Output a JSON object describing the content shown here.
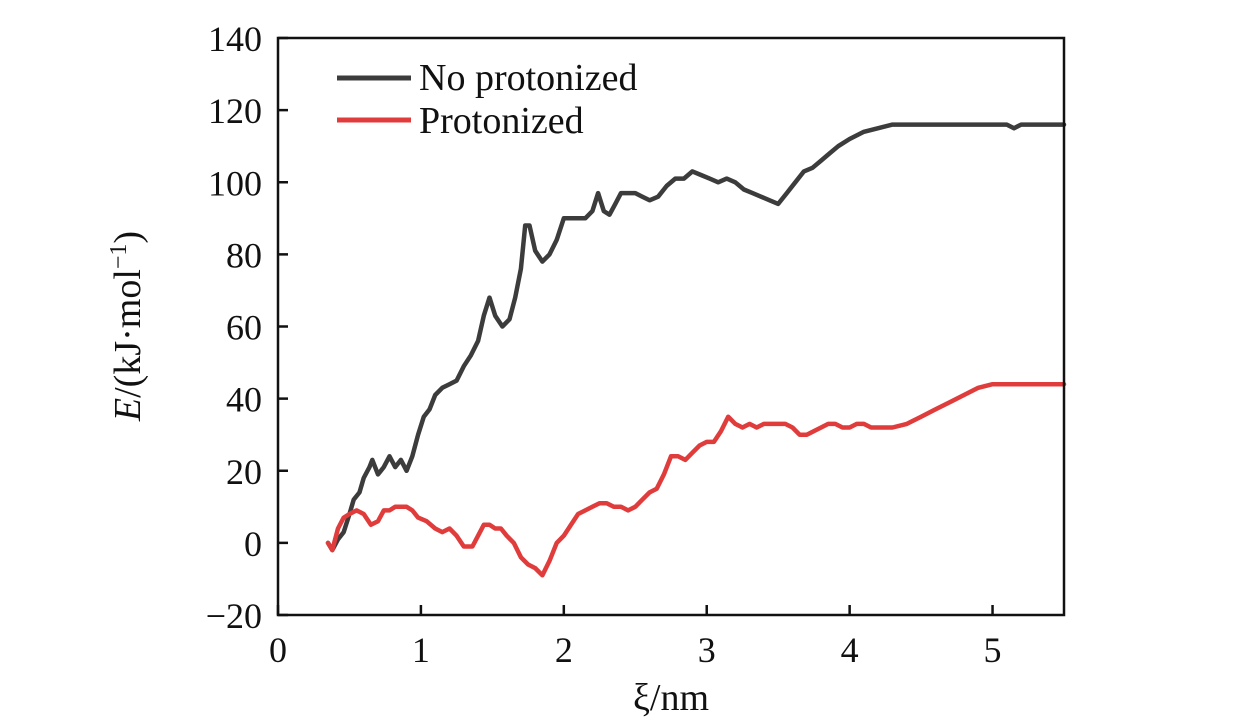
{
  "chart_data": {
    "type": "line",
    "title": "",
    "xlabel": "ξ/nm",
    "ylabel": {
      "italic": "E",
      "rest": "/(kJ·mol",
      "sup": "−1",
      "close": ")"
    },
    "xlim": [
      0,
      5.5
    ],
    "ylim": [
      -20,
      140
    ],
    "xticks": [
      0,
      1,
      2,
      3,
      4,
      5
    ],
    "yticks": [
      -20,
      0,
      20,
      40,
      60,
      80,
      100,
      120,
      140
    ],
    "ytick_labels": [
      "−20",
      "0",
      "20",
      "40",
      "60",
      "80",
      "100",
      "120",
      "140"
    ],
    "grid": false,
    "legend_position": "top-left",
    "series": [
      {
        "name": "No protonized",
        "color": "#3c3c3c",
        "points": [
          [
            0.35,
            0
          ],
          [
            0.38,
            -2
          ],
          [
            0.42,
            1
          ],
          [
            0.46,
            3
          ],
          [
            0.5,
            8
          ],
          [
            0.53,
            12
          ],
          [
            0.57,
            14
          ],
          [
            0.6,
            18
          ],
          [
            0.64,
            21
          ],
          [
            0.66,
            23
          ],
          [
            0.7,
            19
          ],
          [
            0.74,
            21
          ],
          [
            0.78,
            24
          ],
          [
            0.82,
            21
          ],
          [
            0.86,
            23
          ],
          [
            0.9,
            20
          ],
          [
            0.94,
            24
          ],
          [
            0.98,
            30
          ],
          [
            1.02,
            35
          ],
          [
            1.06,
            37
          ],
          [
            1.1,
            41
          ],
          [
            1.15,
            43
          ],
          [
            1.2,
            44
          ],
          [
            1.25,
            45
          ],
          [
            1.3,
            49
          ],
          [
            1.35,
            52
          ],
          [
            1.4,
            56
          ],
          [
            1.44,
            63
          ],
          [
            1.48,
            68
          ],
          [
            1.52,
            63
          ],
          [
            1.57,
            60
          ],
          [
            1.62,
            62
          ],
          [
            1.66,
            68
          ],
          [
            1.7,
            76
          ],
          [
            1.73,
            88
          ],
          [
            1.76,
            88
          ],
          [
            1.8,
            81
          ],
          [
            1.85,
            78
          ],
          [
            1.9,
            80
          ],
          [
            1.95,
            84
          ],
          [
            2.0,
            90
          ],
          [
            2.05,
            90
          ],
          [
            2.1,
            90
          ],
          [
            2.15,
            90
          ],
          [
            2.2,
            92
          ],
          [
            2.24,
            97
          ],
          [
            2.28,
            92
          ],
          [
            2.32,
            91
          ],
          [
            2.36,
            94
          ],
          [
            2.4,
            97
          ],
          [
            2.45,
            97
          ],
          [
            2.5,
            97
          ],
          [
            2.55,
            96
          ],
          [
            2.6,
            95
          ],
          [
            2.66,
            96
          ],
          [
            2.72,
            99
          ],
          [
            2.78,
            101
          ],
          [
            2.84,
            101
          ],
          [
            2.9,
            103
          ],
          [
            2.96,
            102
          ],
          [
            3.02,
            101
          ],
          [
            3.08,
            100
          ],
          [
            3.14,
            101
          ],
          [
            3.2,
            100
          ],
          [
            3.26,
            98
          ],
          [
            3.32,
            97
          ],
          [
            3.38,
            96
          ],
          [
            3.44,
            95
          ],
          [
            3.5,
            94
          ],
          [
            3.56,
            97
          ],
          [
            3.62,
            100
          ],
          [
            3.68,
            103
          ],
          [
            3.74,
            104
          ],
          [
            3.8,
            106
          ],
          [
            3.86,
            108
          ],
          [
            3.92,
            110
          ],
          [
            4.0,
            112
          ],
          [
            4.1,
            114
          ],
          [
            4.2,
            115
          ],
          [
            4.3,
            116
          ],
          [
            4.4,
            116
          ],
          [
            4.5,
            116
          ],
          [
            4.6,
            116
          ],
          [
            4.7,
            116
          ],
          [
            4.8,
            116
          ],
          [
            4.9,
            116
          ],
          [
            5.0,
            116
          ],
          [
            5.1,
            116
          ],
          [
            5.15,
            115
          ],
          [
            5.2,
            116
          ],
          [
            5.3,
            116
          ],
          [
            5.4,
            116
          ],
          [
            5.5,
            116
          ]
        ]
      },
      {
        "name": "Protonized",
        "color": "#e03c3c",
        "points": [
          [
            0.35,
            0
          ],
          [
            0.38,
            -2
          ],
          [
            0.42,
            4
          ],
          [
            0.46,
            7
          ],
          [
            0.5,
            8
          ],
          [
            0.55,
            9
          ],
          [
            0.6,
            8
          ],
          [
            0.65,
            5
          ],
          [
            0.7,
            6
          ],
          [
            0.74,
            9
          ],
          [
            0.78,
            9
          ],
          [
            0.82,
            10
          ],
          [
            0.86,
            10
          ],
          [
            0.9,
            10
          ],
          [
            0.94,
            9
          ],
          [
            0.98,
            7
          ],
          [
            1.04,
            6
          ],
          [
            1.1,
            4
          ],
          [
            1.15,
            3
          ],
          [
            1.2,
            4
          ],
          [
            1.25,
            2
          ],
          [
            1.3,
            -1
          ],
          [
            1.36,
            -1
          ],
          [
            1.4,
            2
          ],
          [
            1.44,
            5
          ],
          [
            1.48,
            5
          ],
          [
            1.52,
            4
          ],
          [
            1.56,
            4
          ],
          [
            1.6,
            2
          ],
          [
            1.65,
            0
          ],
          [
            1.7,
            -4
          ],
          [
            1.75,
            -6
          ],
          [
            1.8,
            -7
          ],
          [
            1.85,
            -9
          ],
          [
            1.9,
            -5
          ],
          [
            1.95,
            0
          ],
          [
            2.0,
            2
          ],
          [
            2.05,
            5
          ],
          [
            2.1,
            8
          ],
          [
            2.15,
            9
          ],
          [
            2.2,
            10
          ],
          [
            2.25,
            11
          ],
          [
            2.3,
            11
          ],
          [
            2.35,
            10
          ],
          [
            2.4,
            10
          ],
          [
            2.45,
            9
          ],
          [
            2.5,
            10
          ],
          [
            2.55,
            12
          ],
          [
            2.6,
            14
          ],
          [
            2.65,
            15
          ],
          [
            2.7,
            19
          ],
          [
            2.75,
            24
          ],
          [
            2.8,
            24
          ],
          [
            2.85,
            23
          ],
          [
            2.9,
            25
          ],
          [
            2.95,
            27
          ],
          [
            3.0,
            28
          ],
          [
            3.05,
            28
          ],
          [
            3.1,
            31
          ],
          [
            3.15,
            35
          ],
          [
            3.2,
            33
          ],
          [
            3.25,
            32
          ],
          [
            3.3,
            33
          ],
          [
            3.35,
            32
          ],
          [
            3.4,
            33
          ],
          [
            3.45,
            33
          ],
          [
            3.5,
            33
          ],
          [
            3.55,
            33
          ],
          [
            3.6,
            32
          ],
          [
            3.65,
            30
          ],
          [
            3.7,
            30
          ],
          [
            3.75,
            31
          ],
          [
            3.8,
            32
          ],
          [
            3.85,
            33
          ],
          [
            3.9,
            33
          ],
          [
            3.95,
            32
          ],
          [
            4.0,
            32
          ],
          [
            4.05,
            33
          ],
          [
            4.1,
            33
          ],
          [
            4.15,
            32
          ],
          [
            4.2,
            32
          ],
          [
            4.3,
            32
          ],
          [
            4.4,
            33
          ],
          [
            4.5,
            35
          ],
          [
            4.6,
            37
          ],
          [
            4.7,
            39
          ],
          [
            4.8,
            41
          ],
          [
            4.9,
            43
          ],
          [
            5.0,
            44
          ],
          [
            5.1,
            44
          ],
          [
            5.2,
            44
          ],
          [
            5.3,
            44
          ],
          [
            5.4,
            44
          ],
          [
            5.5,
            44
          ]
        ]
      }
    ]
  }
}
